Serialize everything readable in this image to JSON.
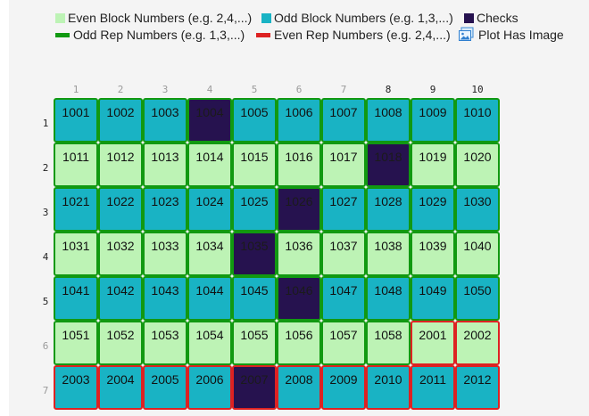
{
  "legend": {
    "even_block": "Even Block Numbers (e.g. 2,4,...)",
    "odd_block": "Odd Block Numbers (e.g. 1,3,...)",
    "checks": "Checks",
    "odd_rep": "Odd Rep Numbers (e.g. 1,3,...)",
    "even_rep": "Even Rep Numbers (e.g. 2,4,...)",
    "plot_image": "Plot Has Image",
    "image_icon": "image-icon"
  },
  "colors": {
    "even_block": "#bdf3b5",
    "odd_block": "#19b3c4",
    "check": "#26124f",
    "odd_rep": "#119911",
    "even_rep": "#dd2222"
  },
  "columns": [
    "1",
    "2",
    "3",
    "4",
    "5",
    "6",
    "7",
    "8",
    "9",
    "10"
  ],
  "rows": [
    {
      "label": "1",
      "type": "odd",
      "plots": [
        {
          "n": "1001"
        },
        {
          "n": "1002"
        },
        {
          "n": "1003"
        },
        {
          "n": "1004",
          "check": true
        },
        {
          "n": "1005"
        },
        {
          "n": "1006"
        },
        {
          "n": "1007"
        },
        {
          "n": "1008"
        },
        {
          "n": "1009"
        },
        {
          "n": "1010"
        }
      ]
    },
    {
      "label": "2",
      "type": "even",
      "plots": [
        {
          "n": "1011"
        },
        {
          "n": "1012"
        },
        {
          "n": "1013"
        },
        {
          "n": "1014"
        },
        {
          "n": "1015"
        },
        {
          "n": "1016"
        },
        {
          "n": "1017"
        },
        {
          "n": "1018",
          "check": true
        },
        {
          "n": "1019"
        },
        {
          "n": "1020"
        }
      ]
    },
    {
      "label": "3",
      "type": "odd",
      "plots": [
        {
          "n": "1021"
        },
        {
          "n": "1022"
        },
        {
          "n": "1023"
        },
        {
          "n": "1024"
        },
        {
          "n": "1025"
        },
        {
          "n": "1026",
          "check": true
        },
        {
          "n": "1027"
        },
        {
          "n": "1028"
        },
        {
          "n": "1029"
        },
        {
          "n": "1030"
        }
      ]
    },
    {
      "label": "4",
      "type": "even",
      "plots": [
        {
          "n": "1031"
        },
        {
          "n": "1032"
        },
        {
          "n": "1033"
        },
        {
          "n": "1034"
        },
        {
          "n": "1035",
          "check": true
        },
        {
          "n": "1036"
        },
        {
          "n": "1037"
        },
        {
          "n": "1038"
        },
        {
          "n": "1039"
        },
        {
          "n": "1040"
        }
      ]
    },
    {
      "label": "5",
      "type": "odd",
      "plots": [
        {
          "n": "1041"
        },
        {
          "n": "1042"
        },
        {
          "n": "1043"
        },
        {
          "n": "1044"
        },
        {
          "n": "1045"
        },
        {
          "n": "1046",
          "check": true
        },
        {
          "n": "1047"
        },
        {
          "n": "1048"
        },
        {
          "n": "1049"
        },
        {
          "n": "1050"
        }
      ]
    },
    {
      "label": "6",
      "type": "even",
      "plots": [
        {
          "n": "1051"
        },
        {
          "n": "1052"
        },
        {
          "n": "1053"
        },
        {
          "n": "1054"
        },
        {
          "n": "1055"
        },
        {
          "n": "1056"
        },
        {
          "n": "1057"
        },
        {
          "n": "1058"
        },
        {
          "n": "2001",
          "rep": "even"
        },
        {
          "n": "2002",
          "rep": "even"
        }
      ]
    },
    {
      "label": "7",
      "type": "odd",
      "plots": [
        {
          "n": "2003",
          "rep": "even"
        },
        {
          "n": "2004",
          "rep": "even"
        },
        {
          "n": "2005",
          "rep": "even"
        },
        {
          "n": "2006",
          "rep": "even"
        },
        {
          "n": "2007",
          "rep": "even",
          "check": true
        },
        {
          "n": "2008",
          "rep": "even"
        },
        {
          "n": "2009",
          "rep": "even"
        },
        {
          "n": "2010",
          "rep": "even"
        },
        {
          "n": "2011",
          "rep": "even"
        },
        {
          "n": "2012",
          "rep": "even"
        }
      ]
    }
  ]
}
